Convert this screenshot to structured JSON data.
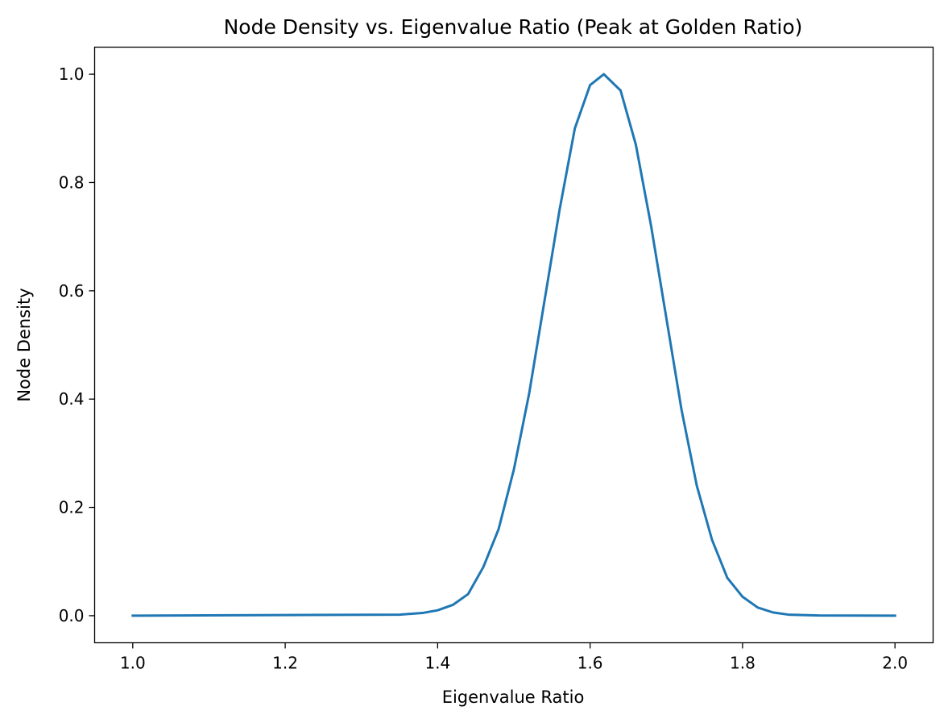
{
  "chart_data": {
    "type": "line",
    "title": "Node Density vs. Eigenvalue Ratio (Peak at Golden Ratio)",
    "xlabel": "Eigenvalue Ratio",
    "ylabel": "Node Density",
    "xlim": [
      0.95,
      2.05
    ],
    "ylim": [
      -0.05,
      1.05
    ],
    "xticks": [
      1.0,
      1.2,
      1.4,
      1.6,
      1.8,
      2.0
    ],
    "xtick_labels": [
      "1.0",
      "1.2",
      "1.4",
      "1.6",
      "1.8",
      "2.0"
    ],
    "yticks": [
      0.0,
      0.2,
      0.4,
      0.6,
      0.8,
      1.0
    ],
    "ytick_labels": [
      "0.0",
      "0.2",
      "0.4",
      "0.6",
      "0.8",
      "1.0"
    ],
    "grid": false,
    "line_color": "#1f77b4",
    "series": [
      {
        "x": [
          1.0,
          1.35,
          1.38,
          1.4,
          1.42,
          1.44,
          1.46,
          1.48,
          1.5,
          1.52,
          1.54,
          1.56,
          1.58,
          1.6,
          1.618,
          1.64,
          1.66,
          1.68,
          1.7,
          1.72,
          1.74,
          1.76,
          1.78,
          1.8,
          1.82,
          1.84,
          1.86,
          1.9,
          2.0
        ],
        "y": [
          0.0,
          0.002,
          0.005,
          0.01,
          0.02,
          0.04,
          0.09,
          0.16,
          0.27,
          0.41,
          0.58,
          0.75,
          0.9,
          0.98,
          1.0,
          0.97,
          0.87,
          0.72,
          0.55,
          0.38,
          0.24,
          0.14,
          0.07,
          0.035,
          0.015,
          0.006,
          0.002,
          0.0005,
          0.0
        ]
      }
    ]
  }
}
